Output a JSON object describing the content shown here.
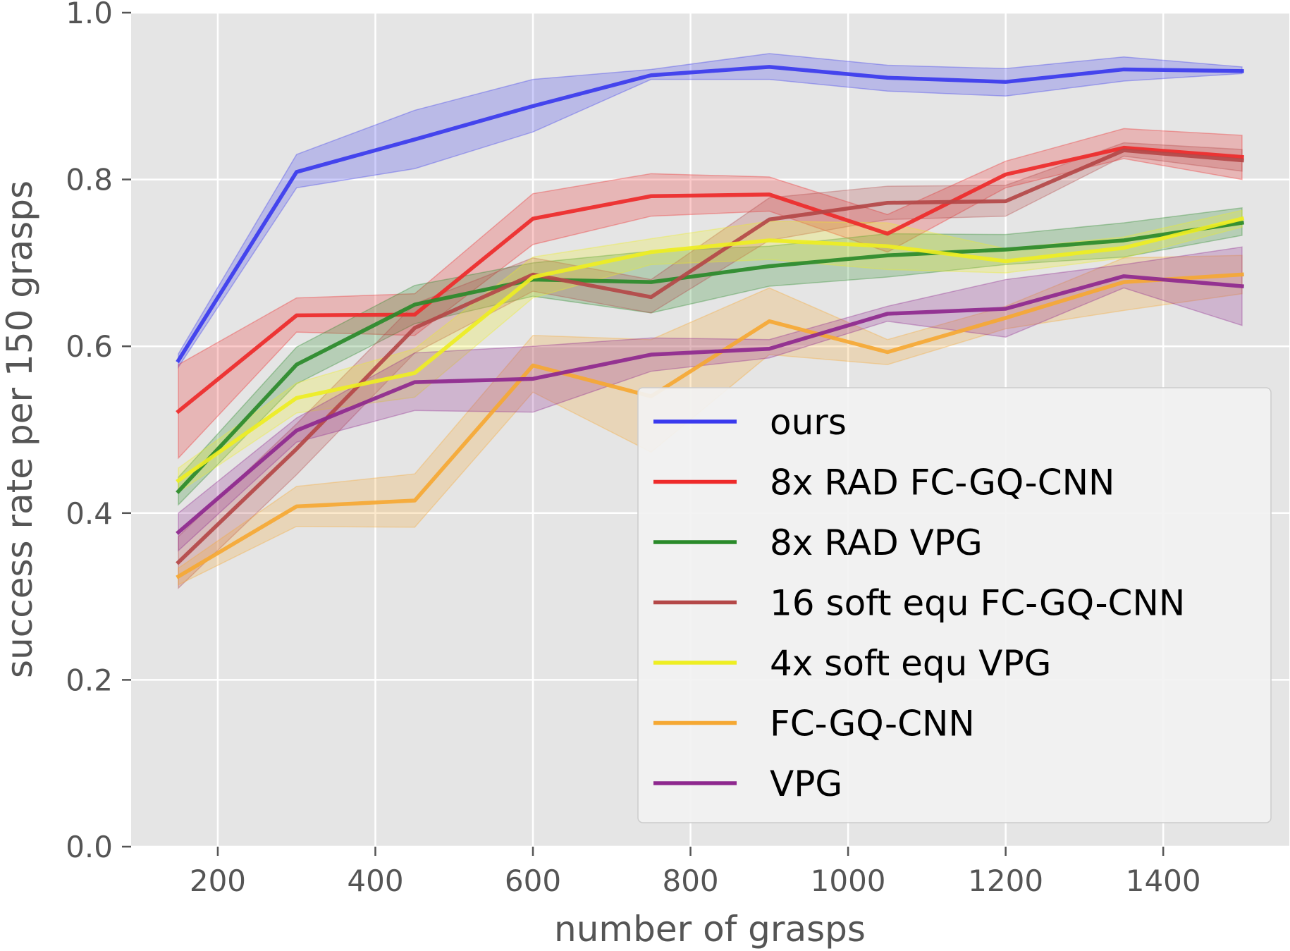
{
  "chart_data": {
    "type": "line",
    "title": "",
    "xlabel": "number of grasps",
    "ylabel": "success rate per 150 grasps",
    "xlim": [
      90,
      1560
    ],
    "ylim": [
      0.0,
      1.0
    ],
    "xticks": [
      200,
      400,
      600,
      800,
      1000,
      1200,
      1400
    ],
    "yticks": [
      0.0,
      0.2,
      0.4,
      0.6,
      0.8,
      1.0
    ],
    "ytick_labels": [
      "0.0",
      "0.2",
      "0.4",
      "0.6",
      "0.8",
      "1.0"
    ],
    "grid": true,
    "legend_position": "lower-right",
    "x": [
      150,
      300,
      450,
      600,
      750,
      900,
      1050,
      1200,
      1350,
      1500
    ],
    "series": [
      {
        "name": "ours",
        "color": "#3a3aee",
        "values": [
          0.583,
          0.809,
          0.848,
          0.888,
          0.925,
          0.935,
          0.922,
          0.917,
          0.932,
          0.93
        ],
        "lower": [
          0.575,
          0.79,
          0.813,
          0.857,
          0.92,
          0.92,
          0.906,
          0.9,
          0.918,
          0.927
        ],
        "upper": [
          0.591,
          0.83,
          0.883,
          0.92,
          0.932,
          0.951,
          0.937,
          0.933,
          0.947,
          0.935
        ]
      },
      {
        "name": "8x RAD FC-GQ-CNN",
        "color": "#ee2a2a",
        "values": [
          0.522,
          0.637,
          0.638,
          0.753,
          0.78,
          0.782,
          0.735,
          0.806,
          0.838,
          0.827
        ],
        "lower": [
          0.466,
          0.617,
          0.613,
          0.722,
          0.756,
          0.762,
          0.713,
          0.79,
          0.825,
          0.8
        ],
        "upper": [
          0.578,
          0.658,
          0.663,
          0.783,
          0.807,
          0.803,
          0.758,
          0.822,
          0.861,
          0.853
        ]
      },
      {
        "name": "8x RAD VPG",
        "color": "#2a8a2a",
        "values": [
          0.426,
          0.578,
          0.65,
          0.68,
          0.677,
          0.696,
          0.709,
          0.716,
          0.727,
          0.748
        ],
        "lower": [
          0.41,
          0.555,
          0.627,
          0.66,
          0.64,
          0.672,
          0.683,
          0.698,
          0.707,
          0.733
        ],
        "upper": [
          0.443,
          0.599,
          0.673,
          0.7,
          0.714,
          0.72,
          0.735,
          0.734,
          0.748,
          0.766
        ]
      },
      {
        "name": "16 soft equ FC-GQ-CNN",
        "color": "#b44848",
        "values": [
          0.341,
          0.477,
          0.622,
          0.686,
          0.659,
          0.752,
          0.772,
          0.774,
          0.835,
          0.823
        ],
        "lower": [
          0.31,
          0.446,
          0.592,
          0.666,
          0.64,
          0.727,
          0.752,
          0.756,
          0.828,
          0.81
        ],
        "upper": [
          0.372,
          0.507,
          0.651,
          0.706,
          0.68,
          0.778,
          0.792,
          0.793,
          0.844,
          0.836
        ]
      },
      {
        "name": "4x soft equ VPG",
        "color": "#eeee22",
        "values": [
          0.439,
          0.538,
          0.568,
          0.683,
          0.713,
          0.727,
          0.72,
          0.702,
          0.718,
          0.753
        ],
        "lower": [
          0.425,
          0.52,
          0.539,
          0.658,
          0.698,
          0.704,
          0.692,
          0.688,
          0.706,
          0.743
        ],
        "upper": [
          0.454,
          0.556,
          0.597,
          0.707,
          0.729,
          0.75,
          0.748,
          0.717,
          0.731,
          0.763
        ]
      },
      {
        "name": "FC-GQ-CNN",
        "color": "#f5a833",
        "values": [
          0.324,
          0.408,
          0.415,
          0.577,
          0.54,
          0.63,
          0.593,
          0.634,
          0.677,
          0.686
        ],
        "lower": [
          0.314,
          0.384,
          0.383,
          0.545,
          0.473,
          0.59,
          0.578,
          0.621,
          0.643,
          0.663
        ],
        "upper": [
          0.334,
          0.432,
          0.447,
          0.613,
          0.608,
          0.67,
          0.608,
          0.648,
          0.706,
          0.709
        ]
      },
      {
        "name": "VPG",
        "color": "#8e288e",
        "values": [
          0.377,
          0.499,
          0.557,
          0.561,
          0.59,
          0.597,
          0.639,
          0.645,
          0.684,
          0.672
        ],
        "lower": [
          0.355,
          0.485,
          0.523,
          0.521,
          0.57,
          0.586,
          0.63,
          0.611,
          0.67,
          0.625
        ],
        "upper": [
          0.4,
          0.514,
          0.592,
          0.6,
          0.61,
          0.608,
          0.648,
          0.68,
          0.698,
          0.719
        ]
      }
    ]
  }
}
